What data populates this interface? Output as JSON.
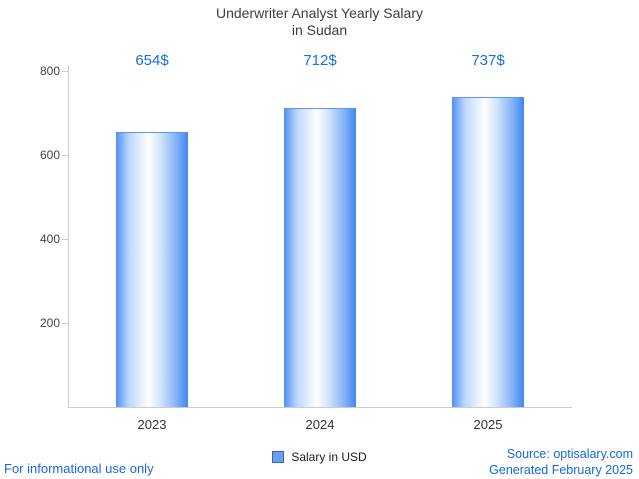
{
  "title": {
    "line1": "Underwriter Analyst Yearly Salary",
    "line2": "in Sudan"
  },
  "chart_data": {
    "type": "bar",
    "categories": [
      "2023",
      "2024",
      "2025"
    ],
    "values": [
      654,
      712,
      737
    ],
    "value_labels": [
      "654$",
      "712$",
      "737$"
    ],
    "series_name": "Salary in USD",
    "title": "Underwriter Analyst Yearly Salary in Sudan",
    "xlabel": "",
    "ylabel": "",
    "ylim": [
      0,
      800
    ],
    "yticks": [
      200,
      400,
      600,
      800
    ],
    "grid": false,
    "legend": "Salary in USD",
    "legend_position": "bottom"
  },
  "colors": {
    "accent_blue": "#1a6ee0",
    "bar_edge_blue": "#3f85ef",
    "axis_gray": "#cccccc",
    "title_text": "#3c3c3c"
  },
  "footer": {
    "left": "For informational use only",
    "source": "Source: optisalary.com",
    "generated": "Generated February 2025"
  }
}
